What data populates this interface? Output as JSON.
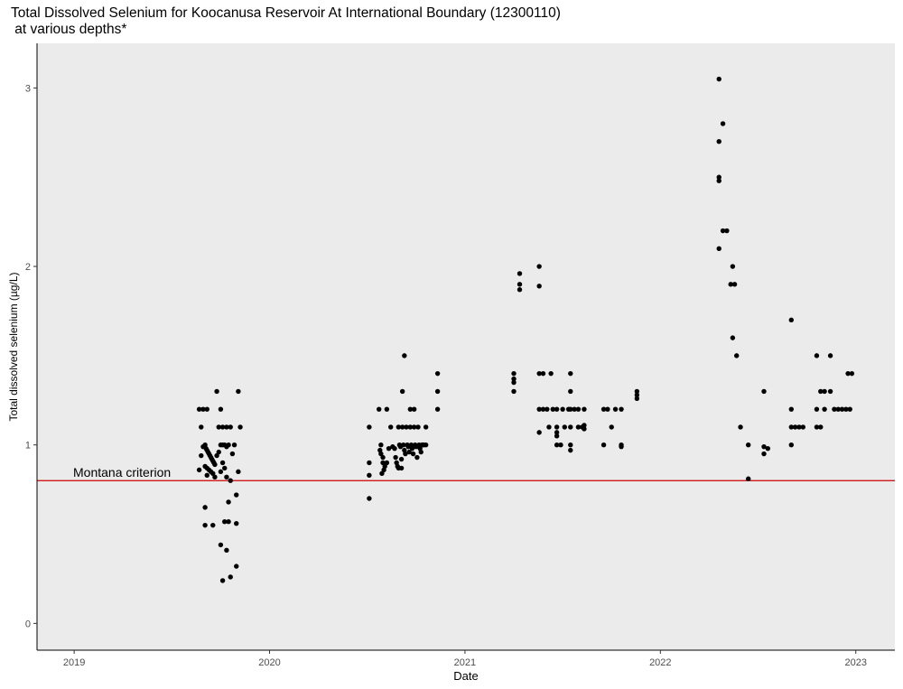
{
  "chart_data": {
    "type": "scatter",
    "title": "Total Dissolved Selenium for Koocanusa Reservoir At International Boundary (12300110)",
    "subtitle": " at various depths*",
    "xlabel": "Date",
    "ylabel": "Total dissolved selenium (µg/L)",
    "x_ticks": [
      "2019",
      "2020",
      "2021",
      "2022",
      "2023"
    ],
    "y_ticks": [
      0,
      1,
      2,
      3
    ],
    "xlim": [
      2018.81,
      2023.2
    ],
    "ylim": [
      -0.15,
      3.25
    ],
    "grid": false,
    "colors": {
      "panel": "#ebebeb",
      "points": "#000000",
      "criterion": "#cc0000"
    },
    "reference_line": {
      "y": 0.8,
      "label": "Montana criterion"
    },
    "points": [
      [
        2019.64,
        1.2
      ],
      [
        2019.66,
        1.2
      ],
      [
        2019.68,
        1.2
      ],
      [
        2019.65,
        1.1
      ],
      [
        2019.73,
        1.3
      ],
      [
        2019.75,
        1.2
      ],
      [
        2019.74,
        1.1
      ],
      [
        2019.76,
        1.1
      ],
      [
        2019.78,
        1.1
      ],
      [
        2019.8,
        1.1
      ],
      [
        2019.84,
        1.3
      ],
      [
        2019.85,
        1.1
      ],
      [
        2019.65,
        0.94
      ],
      [
        2019.66,
        0.99
      ],
      [
        2019.67,
        1.0
      ],
      [
        2019.675,
        0.98
      ],
      [
        2019.68,
        0.97
      ],
      [
        2019.685,
        0.96
      ],
      [
        2019.69,
        0.95
      ],
      [
        2019.695,
        0.94
      ],
      [
        2019.7,
        0.93
      ],
      [
        2019.705,
        0.92
      ],
      [
        2019.71,
        0.91
      ],
      [
        2019.715,
        0.9
      ],
      [
        2019.72,
        0.89
      ],
      [
        2019.67,
        0.88
      ],
      [
        2019.68,
        0.87
      ],
      [
        2019.69,
        0.86
      ],
      [
        2019.7,
        0.85
      ],
      [
        2019.71,
        0.84
      ],
      [
        2019.68,
        0.83
      ],
      [
        2019.72,
        0.82
      ],
      [
        2019.73,
        0.94
      ],
      [
        2019.74,
        0.96
      ],
      [
        2019.75,
        1.0
      ],
      [
        2019.76,
        1.0
      ],
      [
        2019.77,
        1.0
      ],
      [
        2019.78,
        0.99
      ],
      [
        2019.79,
        1.0
      ],
      [
        2019.82,
        1.0
      ],
      [
        2019.81,
        0.95
      ],
      [
        2019.76,
        0.9
      ],
      [
        2019.77,
        0.87
      ],
      [
        2019.64,
        0.86
      ],
      [
        2019.84,
        0.85
      ],
      [
        2019.78,
        0.82
      ],
      [
        2019.8,
        0.8
      ],
      [
        2019.75,
        0.85
      ],
      [
        2019.67,
        0.65
      ],
      [
        2019.67,
        0.55
      ],
      [
        2019.71,
        0.55
      ],
      [
        2019.77,
        0.57
      ],
      [
        2019.79,
        0.57
      ],
      [
        2019.83,
        0.56
      ],
      [
        2019.79,
        0.68
      ],
      [
        2019.83,
        0.72
      ],
      [
        2019.75,
        0.44
      ],
      [
        2019.78,
        0.41
      ],
      [
        2019.83,
        0.32
      ],
      [
        2019.8,
        0.26
      ],
      [
        2019.76,
        0.24
      ],
      [
        2020.51,
        1.1
      ],
      [
        2020.51,
        0.83
      ],
      [
        2020.51,
        0.9
      ],
      [
        2020.51,
        0.7
      ],
      [
        2020.56,
        1.2
      ],
      [
        2020.6,
        1.2
      ],
      [
        2020.57,
        1.0
      ],
      [
        2020.565,
        0.97
      ],
      [
        2020.57,
        0.95
      ],
      [
        2020.58,
        0.93
      ],
      [
        2020.58,
        0.9
      ],
      [
        2020.59,
        0.88
      ],
      [
        2020.585,
        0.86
      ],
      [
        2020.575,
        0.84
      ],
      [
        2020.6,
        0.9
      ],
      [
        2020.61,
        0.98
      ],
      [
        2020.62,
        1.1
      ],
      [
        2020.63,
        0.99
      ],
      [
        2020.64,
        0.98
      ],
      [
        2020.645,
        0.93
      ],
      [
        2020.65,
        0.9
      ],
      [
        2020.655,
        0.88
      ],
      [
        2020.66,
        1.1
      ],
      [
        2020.665,
        1.0
      ],
      [
        2020.67,
        0.99
      ],
      [
        2020.675,
        0.92
      ],
      [
        2020.68,
        1.1
      ],
      [
        2020.685,
        1.0
      ],
      [
        2020.69,
        0.97
      ],
      [
        2020.695,
        0.95
      ],
      [
        2020.7,
        1.1
      ],
      [
        2020.705,
        1.0
      ],
      [
        2020.71,
        0.99
      ],
      [
        2020.715,
        0.96
      ],
      [
        2020.72,
        1.1
      ],
      [
        2020.725,
        1.0
      ],
      [
        2020.73,
        0.98
      ],
      [
        2020.735,
        0.95
      ],
      [
        2020.74,
        1.1
      ],
      [
        2020.745,
        1.0
      ],
      [
        2020.75,
        0.99
      ],
      [
        2020.755,
        0.93
      ],
      [
        2020.76,
        1.1
      ],
      [
        2020.765,
        1.0
      ],
      [
        2020.77,
        0.98
      ],
      [
        2020.775,
        0.96
      ],
      [
        2020.78,
        1.0
      ],
      [
        2020.785,
        1.0
      ],
      [
        2020.79,
        1.0
      ],
      [
        2020.8,
        1.1
      ],
      [
        2020.8,
        1.0
      ],
      [
        2020.68,
        1.3
      ],
      [
        2020.69,
        1.5
      ],
      [
        2020.72,
        1.2
      ],
      [
        2020.74,
        1.2
      ],
      [
        2020.86,
        1.4
      ],
      [
        2020.86,
        1.3
      ],
      [
        2020.86,
        1.2
      ],
      [
        2020.66,
        0.87
      ],
      [
        2020.675,
        0.87
      ],
      [
        2021.25,
        1.4
      ],
      [
        2021.25,
        1.37
      ],
      [
        2021.25,
        1.35
      ],
      [
        2021.25,
        1.3
      ],
      [
        2021.28,
        1.96
      ],
      [
        2021.28,
        1.9
      ],
      [
        2021.28,
        1.87
      ],
      [
        2021.38,
        2.0
      ],
      [
        2021.38,
        1.89
      ],
      [
        2021.38,
        1.4
      ],
      [
        2021.4,
        1.4
      ],
      [
        2021.44,
        1.4
      ],
      [
        2021.38,
        1.2
      ],
      [
        2021.4,
        1.2
      ],
      [
        2021.42,
        1.2
      ],
      [
        2021.38,
        1.07
      ],
      [
        2021.43,
        1.1
      ],
      [
        2021.45,
        1.2
      ],
      [
        2021.47,
        1.2
      ],
      [
        2021.47,
        1.1
      ],
      [
        2021.47,
        1.07
      ],
      [
        2021.47,
        1.05
      ],
      [
        2021.47,
        1.0
      ],
      [
        2021.49,
        1.0
      ],
      [
        2021.5,
        1.2
      ],
      [
        2021.51,
        1.1
      ],
      [
        2021.53,
        1.2
      ],
      [
        2021.54,
        1.4
      ],
      [
        2021.54,
        1.3
      ],
      [
        2021.54,
        1.2
      ],
      [
        2021.54,
        1.1
      ],
      [
        2021.54,
        1.0
      ],
      [
        2021.54,
        0.97
      ],
      [
        2021.56,
        1.2
      ],
      [
        2021.58,
        1.2
      ],
      [
        2021.58,
        1.1
      ],
      [
        2021.6,
        1.1
      ],
      [
        2021.61,
        1.2
      ],
      [
        2021.61,
        1.11
      ],
      [
        2021.61,
        1.09
      ],
      [
        2021.71,
        1.2
      ],
      [
        2021.71,
        1.0
      ],
      [
        2021.73,
        1.2
      ],
      [
        2021.75,
        1.1
      ],
      [
        2021.77,
        1.2
      ],
      [
        2021.8,
        1.2
      ],
      [
        2021.8,
        1.0
      ],
      [
        2021.8,
        0.99
      ],
      [
        2021.88,
        1.3
      ],
      [
        2021.88,
        1.28
      ],
      [
        2021.88,
        1.26
      ],
      [
        2022.3,
        3.05
      ],
      [
        2022.3,
        2.7
      ],
      [
        2022.3,
        2.5
      ],
      [
        2022.3,
        2.48
      ],
      [
        2022.3,
        2.1
      ],
      [
        2022.32,
        2.8
      ],
      [
        2022.32,
        2.2
      ],
      [
        2022.34,
        2.2
      ],
      [
        2022.37,
        2.0
      ],
      [
        2022.36,
        1.9
      ],
      [
        2022.38,
        1.9
      ],
      [
        2022.37,
        1.6
      ],
      [
        2022.39,
        1.5
      ],
      [
        2022.41,
        1.1
      ],
      [
        2022.45,
        1.0
      ],
      [
        2022.45,
        0.81
      ],
      [
        2022.53,
        1.3
      ],
      [
        2022.53,
        0.99
      ],
      [
        2022.53,
        0.95
      ],
      [
        2022.55,
        0.98
      ],
      [
        2022.67,
        1.7
      ],
      [
        2022.67,
        1.2
      ],
      [
        2022.67,
        1.1
      ],
      [
        2022.67,
        1.0
      ],
      [
        2022.69,
        1.1
      ],
      [
        2022.71,
        1.1
      ],
      [
        2022.73,
        1.1
      ],
      [
        2022.8,
        1.5
      ],
      [
        2022.8,
        1.2
      ],
      [
        2022.8,
        1.1
      ],
      [
        2022.82,
        1.3
      ],
      [
        2022.82,
        1.1
      ],
      [
        2022.84,
        1.3
      ],
      [
        2022.84,
        1.2
      ],
      [
        2022.87,
        1.5
      ],
      [
        2022.87,
        1.3
      ],
      [
        2022.89,
        1.2
      ],
      [
        2022.91,
        1.2
      ],
      [
        2022.93,
        1.2
      ],
      [
        2022.95,
        1.2
      ],
      [
        2022.96,
        1.4
      ],
      [
        2022.98,
        1.4
      ],
      [
        2022.97,
        1.2
      ]
    ]
  }
}
